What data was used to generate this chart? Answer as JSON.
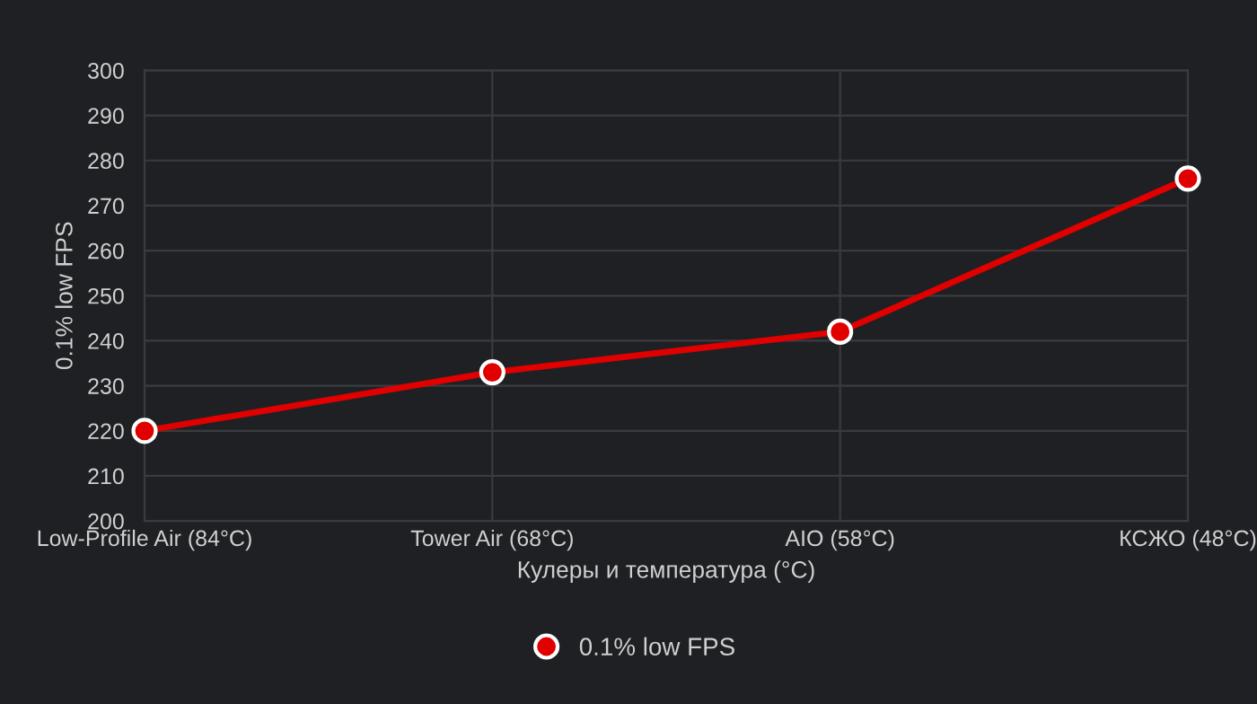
{
  "chart_data": {
    "type": "line",
    "xlabel": "Кулеры и температура (°C)",
    "ylabel": "0.1% low FPS",
    "categories": [
      "Low-Profile Air (84°C)",
      "Tower Air (68°C)",
      "AIO (58°C)",
      "КСЖО (48°C)"
    ],
    "series": [
      {
        "name": "0.1% low FPS",
        "color": "#e00000",
        "values": [
          220,
          233,
          242,
          276
        ]
      }
    ],
    "ylim": [
      200,
      300
    ],
    "yticks": [
      200,
      210,
      220,
      230,
      240,
      250,
      260,
      270,
      280,
      290,
      300
    ],
    "grid": true,
    "legend": "bottom",
    "marker": "circle",
    "line_style": "solid"
  }
}
